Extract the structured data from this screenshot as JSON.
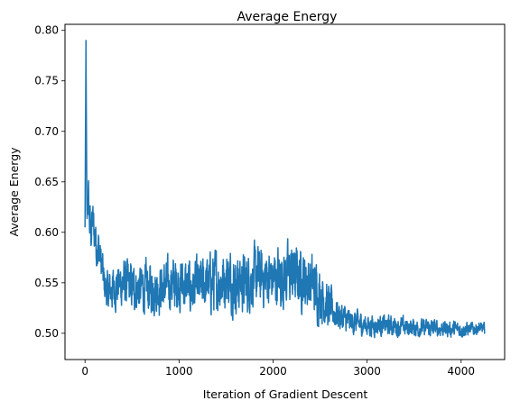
{
  "chart_data": {
    "type": "line",
    "title": "Average Energy",
    "xlabel": "Iteration of Gradient Descent",
    "ylabel": "Average Energy",
    "xlim": [
      -213,
      4463
    ],
    "ylim": [
      0.474,
      0.806
    ],
    "grid": false,
    "legend": "none",
    "xticks": [
      0,
      1000,
      2000,
      3000,
      4000
    ],
    "xtick_labels": [
      "0",
      "1000",
      "2000",
      "3000",
      "4000"
    ],
    "yticks": [
      0.5,
      0.55,
      0.6,
      0.65,
      0.7,
      0.75,
      0.8
    ],
    "ytick_labels": [
      "0.50",
      "0.55",
      "0.60",
      "0.65",
      "0.70",
      "0.75",
      "0.80"
    ],
    "series": [
      {
        "color": "#1f77b4",
        "x": [
          0,
          10,
          20,
          30,
          45,
          60,
          80,
          100,
          120,
          140,
          160,
          180,
          200,
          240,
          300,
          400,
          500,
          600,
          700,
          800,
          900,
          1000,
          1100,
          1200,
          1300,
          1400,
          1500,
          1600,
          1700,
          1800,
          1900,
          2000,
          2100,
          2200,
          2300,
          2400,
          2500,
          2600,
          2700,
          2800,
          2900,
          3000,
          3100,
          3200,
          3300,
          3400,
          3500,
          3600,
          3700,
          3800,
          3900,
          4000,
          4100,
          4200,
          4250
        ],
        "y": [
          0.605,
          0.79,
          0.6,
          0.64,
          0.615,
          0.6,
          0.61,
          0.6,
          0.59,
          0.585,
          0.575,
          0.565,
          0.55,
          0.54,
          0.545,
          0.55,
          0.545,
          0.545,
          0.545,
          0.545,
          0.548,
          0.55,
          0.545,
          0.545,
          0.55,
          0.55,
          0.555,
          0.55,
          0.55,
          0.555,
          0.555,
          0.555,
          0.557,
          0.558,
          0.555,
          0.55,
          0.54,
          0.525,
          0.518,
          0.512,
          0.51,
          0.508,
          0.508,
          0.508,
          0.507,
          0.506,
          0.506,
          0.505,
          0.505,
          0.505,
          0.504,
          0.504,
          0.504,
          0.505,
          0.504
        ],
        "noise_amplitude": [
          0.0,
          0.0,
          0.03,
          0.03,
          0.03,
          0.025,
          0.025,
          0.025,
          0.025,
          0.025,
          0.022,
          0.022,
          0.02,
          0.02,
          0.022,
          0.025,
          0.025,
          0.025,
          0.025,
          0.025,
          0.025,
          0.028,
          0.028,
          0.028,
          0.028,
          0.032,
          0.03,
          0.03,
          0.03,
          0.03,
          0.03,
          0.03,
          0.032,
          0.032,
          0.03,
          0.03,
          0.028,
          0.022,
          0.016,
          0.013,
          0.012,
          0.011,
          0.011,
          0.01,
          0.01,
          0.01,
          0.009,
          0.009,
          0.009,
          0.008,
          0.008,
          0.008,
          0.007,
          0.006,
          0.006
        ]
      }
    ]
  }
}
